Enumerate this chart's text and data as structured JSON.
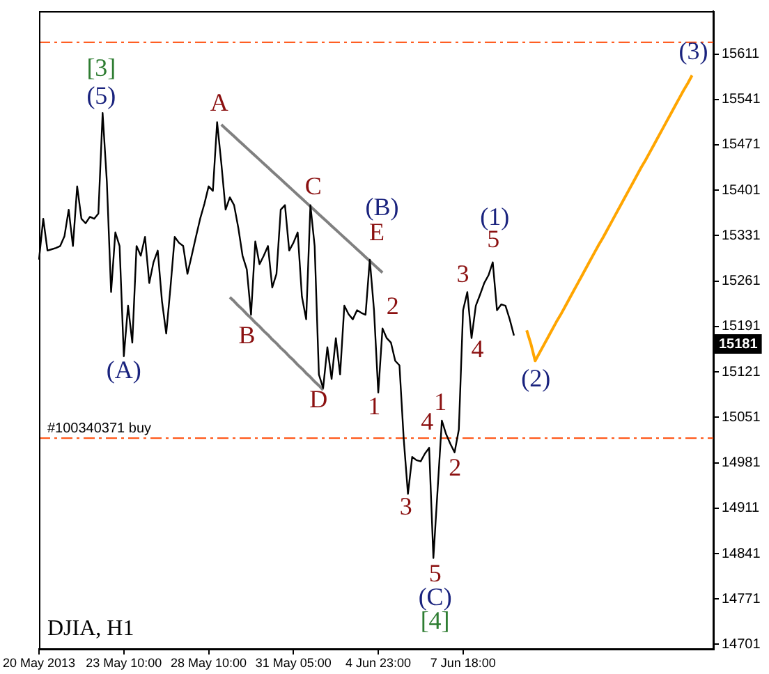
{
  "chart_data": {
    "type": "line",
    "title": "DJIA, H1",
    "categories": [
      "20 May 2013",
      null,
      null,
      null,
      null,
      null,
      null,
      null,
      null,
      null,
      null,
      null,
      null,
      null,
      null,
      null,
      null,
      null,
      null,
      null,
      "23 May 10:00",
      null,
      null,
      null,
      null,
      null,
      null,
      null,
      null,
      null,
      null,
      null,
      null,
      null,
      null,
      null,
      null,
      null,
      null,
      null,
      "28 May 10:00",
      null,
      null,
      null,
      null,
      null,
      null,
      null,
      null,
      null,
      null,
      null,
      null,
      null,
      null,
      null,
      null,
      null,
      null,
      null,
      "31 May 05:00",
      null,
      null,
      null,
      null,
      null,
      null,
      null,
      null,
      null,
      null,
      null,
      null,
      null,
      null,
      null,
      null,
      null,
      null,
      null,
      "4 Jun 23:00",
      null,
      null,
      null,
      null,
      null,
      null,
      null,
      null,
      null,
      null,
      null,
      null,
      null,
      null,
      null,
      null,
      null,
      null,
      null,
      "7 Jun 18:00",
      null,
      null,
      null,
      null,
      null,
      null,
      null,
      null,
      null,
      null,
      null,
      null,
      null,
      null,
      null,
      null,
      null,
      null,
      null,
      null,
      null,
      null,
      null,
      null,
      null,
      null,
      null,
      null,
      null,
      null,
      null,
      null,
      null,
      null,
      null,
      null,
      null,
      null,
      null,
      null,
      null,
      null,
      null,
      null,
      null,
      null,
      null,
      null,
      null,
      null,
      null,
      null,
      null,
      null,
      null,
      null,
      null,
      null,
      null
    ],
    "ylim": [
      14694,
      15677
    ],
    "yticks": [
      14701,
      14771,
      14841,
      14911,
      14981,
      15051,
      15121,
      15191,
      15261,
      15331,
      15401,
      15471,
      15541,
      15611
    ],
    "grid": false,
    "legend": false,
    "marker": "none",
    "line_style": "solid",
    "series": [
      {
        "color": "#000000",
        "values": [
          15294,
          15357,
          15308,
          15310,
          15312,
          15315,
          15330,
          15371,
          15315,
          15407,
          15357,
          15350,
          15360,
          15357,
          15365,
          15520,
          15414,
          15244,
          15336,
          15315,
          15145,
          15223,
          15166,
          15315,
          15300,
          15329,
          15258,
          15290,
          15308,
          15230,
          15180,
          15251,
          15329,
          15320,
          15315,
          15272,
          15300,
          15329,
          15357,
          15380,
          15407,
          15400,
          15506,
          15442,
          15371,
          15390,
          15378,
          15343,
          15300,
          15279,
          15209,
          15322,
          15287,
          15300,
          15315,
          15251,
          15272,
          15371,
          15378,
          15308,
          15320,
          15336,
          15237,
          15202,
          15378,
          15315,
          15117,
          15096,
          15159,
          15110,
          15173,
          15117,
          15223,
          15210,
          15202,
          15216,
          15212,
          15209,
          15294,
          15216,
          15089,
          15188,
          15173,
          15166,
          15138,
          15131,
          15018,
          14933,
          14990,
          14985,
          14983,
          14995,
          15004,
          14834,
          14940,
          15046,
          15025,
          15010,
          14997,
          15032,
          15216,
          15244,
          15173,
          15223,
          15240,
          15258,
          15270,
          15290,
          15216,
          15225,
          15223,
          15202,
          15177,
          null,
          null,
          null,
          null,
          null,
          null,
          null,
          null,
          null,
          null,
          null,
          null,
          null,
          null,
          null,
          null,
          null,
          null,
          null,
          null,
          null,
          null,
          null,
          null,
          null,
          null,
          null,
          null,
          null,
          null,
          null,
          null,
          null,
          null,
          null,
          null,
          null,
          null,
          null,
          null,
          null,
          null,
          null,
          null,
          null,
          null,
          null
        ]
      },
      {
        "color": "#808080",
        "values": [
          null,
          null,
          null,
          null,
          null,
          null,
          null,
          null,
          null,
          null,
          null,
          null,
          null,
          null,
          null,
          null,
          null,
          null,
          null,
          null,
          null,
          null,
          null,
          null,
          null,
          null,
          null,
          null,
          null,
          null,
          null,
          null,
          null,
          null,
          null,
          null,
          null,
          null,
          null,
          null,
          null,
          null,
          null,
          15502,
          15496,
          15490,
          15484,
          15478,
          15472,
          15466,
          15460,
          15454,
          15448,
          15442,
          15436,
          15430,
          15424,
          15418,
          15412,
          15406,
          15400,
          15394,
          15388,
          15382,
          15376,
          15370,
          15364,
          15358,
          15352,
          15346,
          15340,
          15334,
          15328,
          15322,
          15316,
          15310,
          15304,
          15298,
          15292,
          15286,
          15280,
          15274,
          null,
          null,
          null,
          null,
          null,
          null,
          null,
          null,
          null,
          null,
          null,
          null,
          null,
          null,
          null,
          null,
          null,
          null,
          null,
          null,
          null,
          null,
          null,
          null,
          null,
          null,
          null,
          null,
          null,
          null,
          null,
          null,
          null,
          null,
          null,
          null,
          null,
          null,
          null,
          null,
          null,
          null,
          null,
          null,
          null,
          null,
          null,
          null,
          null,
          null,
          null,
          null,
          null,
          null,
          null,
          null,
          null,
          null,
          null,
          null,
          null,
          null,
          null,
          null,
          null,
          null,
          null,
          null,
          null,
          null,
          null,
          null,
          null,
          null,
          null,
          null,
          null,
          null
        ]
      },
      {
        "color": "#808080",
        "values": [
          null,
          null,
          null,
          null,
          null,
          null,
          null,
          null,
          null,
          null,
          null,
          null,
          null,
          null,
          null,
          null,
          null,
          null,
          null,
          null,
          null,
          null,
          null,
          null,
          null,
          null,
          null,
          null,
          null,
          null,
          null,
          null,
          null,
          null,
          null,
          null,
          null,
          null,
          null,
          null,
          null,
          null,
          null,
          null,
          null,
          15236,
          15230,
          15223,
          15217,
          15210,
          15204,
          15197,
          15191,
          15184,
          15178,
          15171,
          15165,
          15158,
          15152,
          15145,
          15139,
          15132,
          15126,
          15119,
          15113,
          15106,
          15100,
          15093,
          null,
          null,
          null,
          null,
          null,
          null,
          null,
          null,
          null,
          null,
          null,
          null,
          null,
          null,
          null,
          null,
          null,
          null,
          null,
          null,
          null,
          null,
          null,
          null,
          null,
          null,
          null,
          null,
          null,
          null,
          null,
          null,
          null,
          null,
          null,
          null,
          null,
          null,
          null,
          null,
          null,
          null,
          null,
          null,
          null,
          null,
          null,
          null,
          null,
          null,
          null,
          null,
          null,
          null,
          null,
          null,
          null,
          null,
          null,
          null,
          null,
          null,
          null,
          null,
          null,
          null,
          null,
          null,
          null,
          null,
          null,
          null,
          null,
          null,
          null,
          null,
          null,
          null,
          null,
          null,
          null,
          null,
          null,
          null,
          null,
          null,
          null,
          null,
          null,
          null,
          null,
          null
        ]
      },
      {
        "color": "#ffa500",
        "values": [
          null,
          null,
          null,
          null,
          null,
          null,
          null,
          null,
          null,
          null,
          null,
          null,
          null,
          null,
          null,
          null,
          null,
          null,
          null,
          null,
          null,
          null,
          null,
          null,
          null,
          null,
          null,
          null,
          null,
          null,
          null,
          null,
          null,
          null,
          null,
          null,
          null,
          null,
          null,
          null,
          null,
          null,
          null,
          null,
          null,
          null,
          null,
          null,
          null,
          null,
          null,
          null,
          null,
          null,
          null,
          null,
          null,
          null,
          null,
          null,
          null,
          null,
          null,
          null,
          null,
          null,
          null,
          null,
          null,
          null,
          null,
          null,
          null,
          null,
          null,
          null,
          null,
          null,
          null,
          null,
          null,
          null,
          null,
          null,
          null,
          null,
          null,
          null,
          null,
          null,
          null,
          null,
          null,
          null,
          null,
          null,
          null,
          null,
          null,
          null,
          null,
          null,
          null,
          null,
          null,
          null,
          null,
          null,
          null,
          null,
          null,
          null,
          null,
          null,
          null,
          15185,
          15164,
          15138,
          15150,
          15162,
          15174,
          15186,
          15198,
          15209,
          15221,
          15233,
          15245,
          15257,
          15269,
          15281,
          15293,
          15305,
          15317,
          15328,
          15340,
          15352,
          15364,
          15376,
          15388,
          15400,
          15412,
          15424,
          15436,
          15447,
          15459,
          15471,
          15483,
          15495,
          15507,
          15519,
          15531,
          15543,
          15555,
          15566,
          15578,
          null,
          null,
          null,
          null,
          null
        ]
      }
    ],
    "ref_lines": [
      {
        "axis": "y",
        "value": 15629,
        "color": "#ff4500",
        "line_style": "dashed"
      },
      {
        "axis": "y",
        "value": 15019,
        "color": "#ff4500",
        "line_style": "dashed",
        "label": "#100340371 buy"
      }
    ],
    "annotations": [
      "[3]",
      "(5)",
      "A",
      "C",
      "(B)",
      "E",
      "B",
      "(A)",
      "D",
      "1",
      "2",
      "3",
      "4",
      "1",
      "2",
      "5",
      "(C)",
      "[4]",
      "3",
      "4",
      "5",
      "(1)",
      "(2)",
      "(3)",
      "15181"
    ]
  }
}
